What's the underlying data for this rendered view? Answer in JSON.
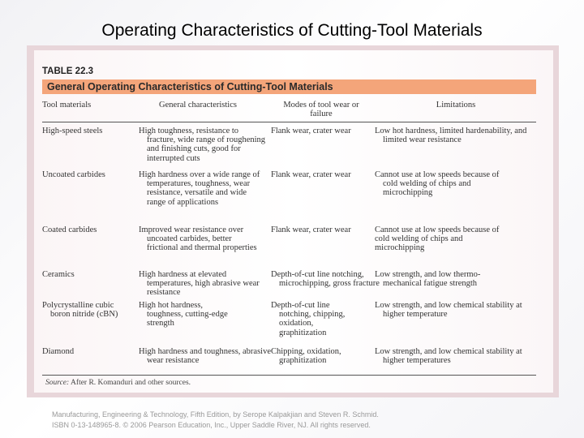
{
  "slide": {
    "title": "Operating Characteristics of Cutting-Tool Materials"
  },
  "table": {
    "number": "TABLE 22.3",
    "caption": "General Operating Characteristics of Cutting-Tool Materials",
    "headers": {
      "material": "Tool materials",
      "characteristics": "General characteristics",
      "wear": "Modes of tool wear or failure",
      "limitations": "Limitations"
    },
    "rows": [
      {
        "material": "High-speed steels",
        "characteristics": "High toughness, resistance to fracture, wide range of roughening and finishing cuts, good for interrupted cuts",
        "wear": "Flank wear, crater wear",
        "limitations": "Low hot hardness, limited hardenability, and limited wear resistance"
      },
      {
        "material": "Uncoated carbides",
        "characteristics": "High hardness over a wide range of temperatures, toughness, wear resistance, versatile and wide range of applications",
        "wear": "Flank wear, crater wear",
        "limitations": "Cannot use at low speeds because of cold welding of chips and microchipping"
      },
      {
        "material": "Coated carbides",
        "characteristics": "Improved wear resistance over uncoated carbides, better frictional and thermal properties",
        "wear": "Flank wear, crater wear",
        "limitations": "Cannot use at low speeds because of cold welding of chips and microchipping"
      },
      {
        "material": "Ceramics",
        "characteristics": "High hardness at elevated temperatures, high abrasive wear resistance",
        "wear": "Depth-of-cut line notching, microchipping, gross fracture",
        "limitations": "Low strength, and low thermo-mechanical fatigue strength"
      },
      {
        "material": "Polycrystalline cubic boron nitride (cBN)",
        "characteristics": "High hot hardness, toughness, cutting-edge strength",
        "wear": "Depth-of-cut line notching, chipping, oxidation, graphitization",
        "limitations": "Low strength, and low chemical stability at higher temperature"
      },
      {
        "material": "Diamond",
        "characteristics": "High hardness and toughness, abrasive wear resistance",
        "wear": "Chipping, oxidation, graphitization",
        "limitations": "Low strength, and low chemical stability at higher temperatures"
      }
    ],
    "source_label": "Source:",
    "source_text": " After R. Komanduri and other sources."
  },
  "footer": {
    "line1": "Manufacturing, Engineering & Technology, Fifth Edition, by Serope Kalpakjian and Steven R. Schmid.",
    "line2": "ISBN 0-13-148965-8. © 2006 Pearson Education, Inc., Upper Saddle River, NJ.  All rights reserved."
  },
  "colors": {
    "caption_bar": "#f4a57a",
    "frame": "#e8d6da"
  }
}
